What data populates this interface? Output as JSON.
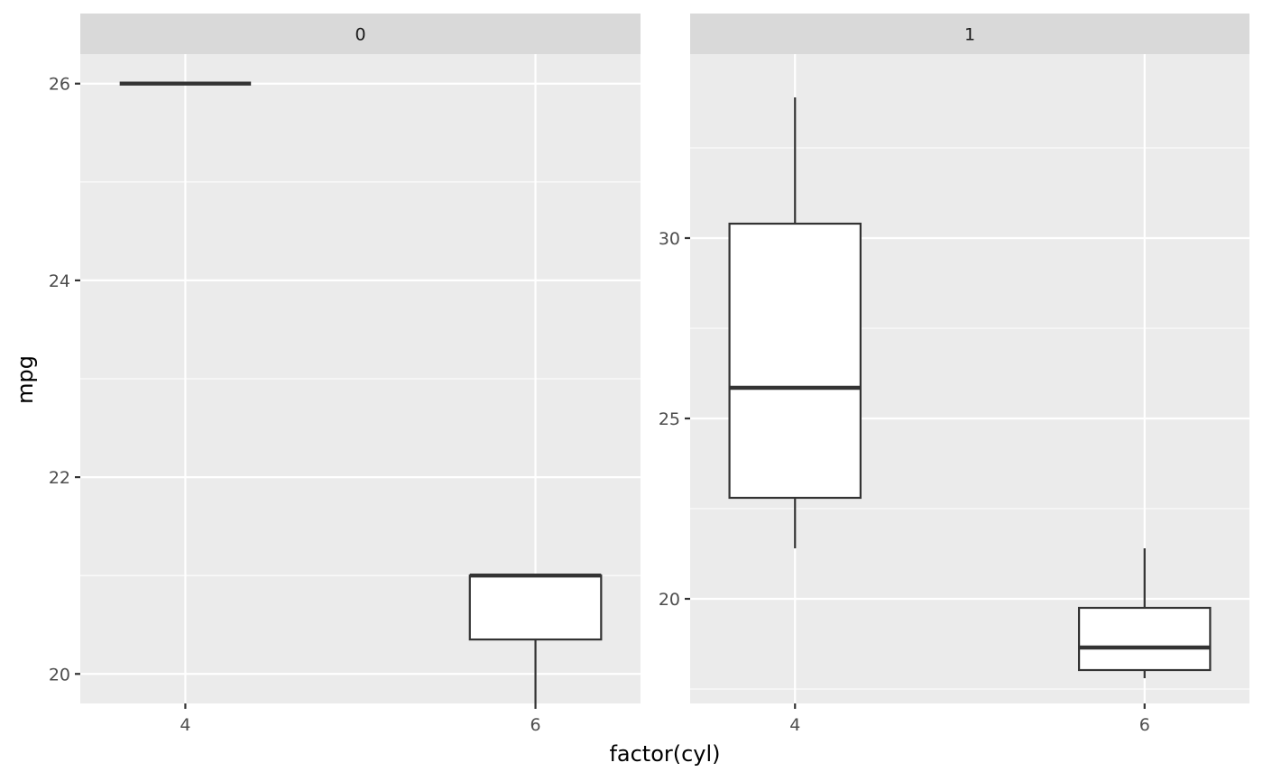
{
  "chart_data": {
    "type": "boxplot",
    "xlabel": "factor(cyl)",
    "ylabel": "mpg",
    "categories": [
      "4",
      "6"
    ],
    "facets": [
      {
        "label": "0",
        "ylim": [
          19.7,
          26.3
        ],
        "yticks": [
          20,
          22,
          24,
          26
        ],
        "yticks_minor": [
          21,
          23,
          25
        ],
        "boxes": [
          {
            "category": "4",
            "min": 26.0,
            "q1": 26.0,
            "median": 26.0,
            "q3": 26.0,
            "max": 26.0
          },
          {
            "category": "6",
            "min": 19.7,
            "q1": 20.35,
            "median": 21.0,
            "q3": 21.0,
            "max": 21.0
          }
        ]
      },
      {
        "label": "1",
        "ylim": [
          17.1,
          35.1
        ],
        "yticks": [
          20,
          25,
          30
        ],
        "yticks_minor": [
          17.5,
          22.5,
          27.5,
          32.5
        ],
        "boxes": [
          {
            "category": "4",
            "min": 21.4,
            "q1": 22.8,
            "median": 25.85,
            "q3": 30.4,
            "max": 33.9
          },
          {
            "category": "6",
            "min": 17.8,
            "q1": 18.025,
            "median": 18.65,
            "q3": 19.75,
            "max": 21.4
          }
        ]
      }
    ]
  }
}
